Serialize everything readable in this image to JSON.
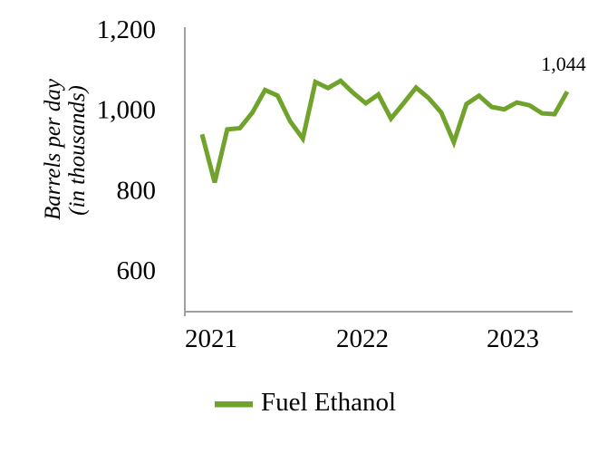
{
  "chart_data": {
    "type": "line",
    "title": "",
    "ylabel_line1": "Barrels per day",
    "ylabel_line2": "(in thousands)",
    "xlabel": "",
    "y_ticks": [
      1200,
      1000,
      800,
      600
    ],
    "y_tick_labels": [
      "1,200",
      "1,000",
      "800",
      "600"
    ],
    "x_tick_labels": [
      "2021",
      "2022",
      "2023"
    ],
    "ylim": [
      495,
      1200
    ],
    "grid": false,
    "legend_position": "bottom",
    "axis_color": "#A0A0A0",
    "x": [
      "Jan 2021",
      "Feb 2021",
      "Mar 2021",
      "Apr 2021",
      "May 2021",
      "Jun 2021",
      "Jul 2021",
      "Aug 2021",
      "Sep 2021",
      "Oct 2021",
      "Nov 2021",
      "Dec 2021",
      "Jan 2022",
      "Feb 2022",
      "Mar 2022",
      "Apr 2022",
      "May 2022",
      "Jun 2022",
      "Jul 2022",
      "Aug 2022",
      "Sep 2022",
      "Oct 2022",
      "Nov 2022",
      "Dec 2022",
      "Jan 2023",
      "Feb 2023",
      "Mar 2023",
      "Apr 2023",
      "May 2023",
      "Jun 2023"
    ],
    "series": [
      {
        "name": "Fuel Ethanol",
        "color": "#6FA32C",
        "values": [
          938,
          818,
          950,
          953,
          992,
          1048,
          1034,
          970,
          927,
          1068,
          1053,
          1071,
          1041,
          1015,
          1037,
          977,
          1015,
          1054,
          1028,
          992,
          918,
          1013,
          1034,
          1006,
          1000,
          1017,
          1010,
          990,
          988,
          1044
        ]
      }
    ],
    "end_annotation": "1,044"
  }
}
